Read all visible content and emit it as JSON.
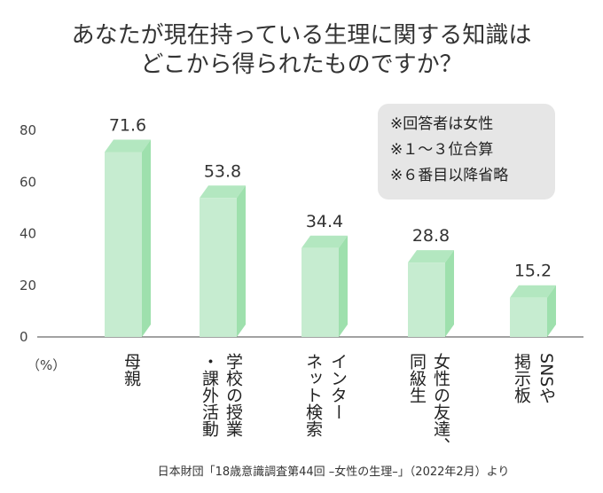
{
  "chart_data": {
    "type": "bar",
    "title": [
      "あなたが現在持っている生理に関する知識は",
      "どこから得られたものですか？"
    ],
    "unit_label": "（%）",
    "categories": [
      "母親",
      "学校の授業・課外活動",
      "インターネット検索",
      "女性の友達、同級生",
      "SNSや掲示板"
    ],
    "category_columns": [
      [
        "母親"
      ],
      [
        "・課外活動",
        "学校の授業"
      ],
      [
        "ネット検索",
        "インター"
      ],
      [
        "同級生",
        "女性の友達、"
      ],
      [
        "掲示板",
        "SNSや"
      ]
    ],
    "values": [
      71.6,
      53.8,
      34.4,
      28.8,
      15.2
    ],
    "value_labels": [
      "71.6",
      "53.8",
      "34.4",
      "28.8",
      "15.2"
    ],
    "ylim": [
      0,
      80
    ],
    "yticks": [
      0,
      20,
      40,
      60,
      80
    ],
    "grid": false,
    "notes": [
      "※回答者は女性",
      "※１～３位合算",
      "※６番目以降省略"
    ],
    "source": "日本財団「18歳意識調査第44回 –女性の生理–」（2022年2月）より",
    "colors": {
      "bar_front": "#c6ecd0",
      "bar_side": "#9ee0ad",
      "bar_top": "#b3e7c0",
      "axis": "#444444",
      "note_bg": "#e6e6e6"
    }
  }
}
